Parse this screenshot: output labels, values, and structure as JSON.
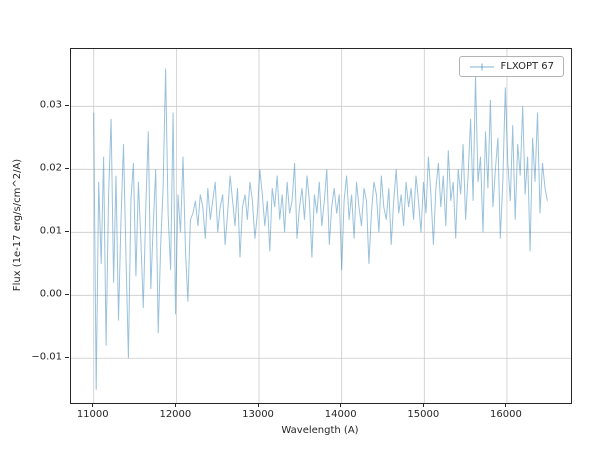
{
  "figure": {
    "background": "#ffffff"
  },
  "chart_data": {
    "type": "line",
    "title": "",
    "xlabel": "Wavelength (A)",
    "ylabel": "Flux (1e-17 erg/s/cm^2/A)",
    "legend": {
      "label": "FLXOPT 67",
      "position": "upper right",
      "marker": "plus-line"
    },
    "grid": true,
    "grid_color": "#cccccc",
    "line_color": "#1f77b4",
    "line_opacity": 0.45,
    "axis_color": "#262626",
    "xlim": [
      10725,
      16775
    ],
    "ylim": [
      -0.0171,
      0.0391
    ],
    "x_ticks": [
      11000,
      12000,
      13000,
      14000,
      15000,
      16000
    ],
    "y_ticks": [
      -0.01,
      0.0,
      0.01,
      0.02,
      0.03
    ],
    "x_start": 11000,
    "x_step": 30,
    "values": [
      0.029,
      -0.015,
      0.018,
      0.005,
      0.022,
      -0.008,
      0.016,
      0.028,
      0.002,
      0.019,
      -0.004,
      0.012,
      0.024,
      0.006,
      -0.01,
      0.015,
      0.021,
      0.003,
      0.018,
      0.009,
      -0.002,
      0.014,
      0.026,
      0.001,
      0.011,
      0.02,
      -0.006,
      0.008,
      0.017,
      0.036,
      0.013,
      0.004,
      0.029,
      -0.003,
      0.016,
      0.01,
      0.022,
      0.007,
      -0.001,
      0.012,
      0.013,
      0.015,
      0.011,
      0.016,
      0.014,
      0.009,
      0.017,
      0.012,
      0.015,
      0.018,
      0.01,
      0.014,
      0.016,
      0.008,
      0.013,
      0.019,
      0.015,
      0.011,
      0.017,
      0.006,
      0.014,
      0.016,
      0.012,
      0.018,
      0.015,
      0.009,
      0.013,
      0.02,
      0.016,
      0.011,
      0.015,
      0.007,
      0.017,
      0.014,
      0.019,
      0.012,
      0.016,
      0.01,
      0.018,
      0.013,
      0.015,
      0.021,
      0.009,
      0.014,
      0.017,
      0.012,
      0.019,
      0.015,
      0.006,
      0.016,
      0.013,
      0.018,
      0.011,
      0.015,
      0.02,
      0.008,
      0.014,
      0.017,
      0.013,
      0.016,
      0.004,
      0.015,
      0.019,
      0.012,
      0.016,
      0.009,
      0.018,
      0.014,
      0.011,
      0.017,
      0.015,
      0.005,
      0.013,
      0.018,
      0.016,
      0.01,
      0.019,
      0.014,
      0.012,
      0.017,
      0.008,
      0.015,
      0.02,
      0.013,
      0.016,
      0.011,
      0.018,
      0.014,
      0.017,
      0.012,
      0.019,
      0.015,
      0.01,
      0.018,
      0.013,
      0.022,
      0.016,
      0.008,
      0.017,
      0.021,
      0.014,
      0.019,
      0.011,
      0.023,
      0.015,
      0.018,
      0.009,
      0.02,
      0.016,
      0.024,
      0.012,
      0.019,
      0.028,
      0.015,
      0.035,
      0.018,
      0.022,
      0.01,
      0.026,
      0.017,
      0.031,
      0.014,
      0.02,
      0.025,
      0.009,
      0.018,
      0.033,
      0.021,
      0.015,
      0.027,
      0.012,
      0.024,
      0.019,
      0.03,
      0.016,
      0.022,
      0.007,
      0.025,
      0.018,
      0.029,
      0.013,
      0.021,
      0.017,
      0.015
    ]
  }
}
